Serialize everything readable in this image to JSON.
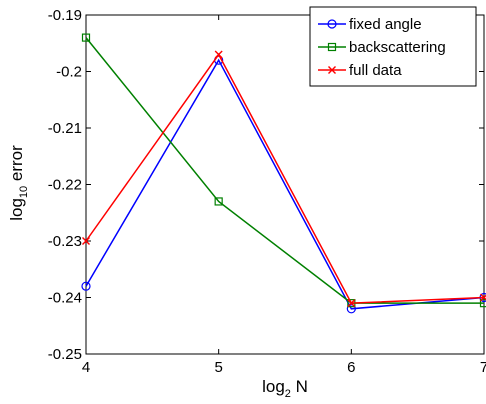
{
  "chart_data": {
    "type": "line",
    "title": "",
    "xlabel": {
      "base": "log",
      "sub": "2",
      "rest": " N"
    },
    "ylabel": {
      "base": "log",
      "sub": "10",
      "rest": " error"
    },
    "xlim": [
      4,
      7
    ],
    "ylim": [
      -0.25,
      -0.19
    ],
    "xticks": [
      4,
      5,
      6,
      7
    ],
    "xtick_labels": [
      "4",
      "5",
      "6",
      "7"
    ],
    "yticks": [
      -0.25,
      -0.24,
      -0.23,
      -0.22,
      -0.21,
      -0.2,
      -0.19
    ],
    "ytick_labels": [
      "-0.25",
      "-0.24",
      "-0.23",
      "-0.22",
      "-0.21",
      "-0.2",
      "-0.19"
    ],
    "grid": false,
    "legend_position": "top-right",
    "x": [
      4,
      5,
      6,
      7
    ],
    "series": [
      {
        "name": "fixed angle",
        "color": "#0000ff",
        "marker": "circle",
        "values": [
          -0.238,
          -0.198,
          -0.242,
          -0.24
        ]
      },
      {
        "name": "backscattering",
        "color": "#008000",
        "marker": "square",
        "values": [
          -0.194,
          -0.223,
          -0.241,
          -0.241
        ]
      },
      {
        "name": "full data",
        "color": "#ff0000",
        "marker": "x",
        "values": [
          -0.23,
          -0.197,
          -0.241,
          -0.24
        ]
      }
    ]
  }
}
